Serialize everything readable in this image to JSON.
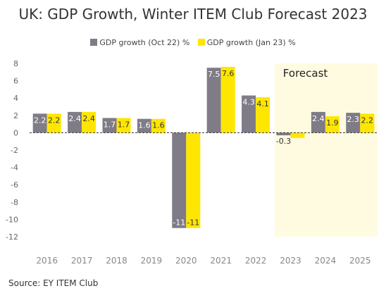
{
  "chart_data": {
    "type": "bar",
    "title": "UK: GDP Growth, Winter ITEM Club Forecast 2023",
    "categories": [
      "2016",
      "2017",
      "2018",
      "2019",
      "2020",
      "2021",
      "2022",
      "2023",
      "2024",
      "2025"
    ],
    "series": [
      {
        "name": "GDP growth (Oct 22) %",
        "color": "#7f7b87",
        "values": [
          2.2,
          2.4,
          1.7,
          1.6,
          -11,
          7.5,
          4.3,
          -0.3,
          2.4,
          2.3
        ],
        "labels": [
          "2.2",
          "2.4",
          "1.7",
          "1.6",
          "-11",
          "7.5",
          "4.3",
          "-0.3",
          "2.4",
          "2.3"
        ]
      },
      {
        "name": "GDP growth (Jan 23) %",
        "color": "#ffe600",
        "values": [
          2.2,
          2.4,
          1.7,
          1.6,
          -11,
          7.6,
          4.1,
          -0.6,
          1.9,
          2.2
        ],
        "labels": [
          "2.2",
          "2.4",
          "1.7",
          "1.6",
          "-11",
          "7.6",
          "4.1",
          "",
          "1.9",
          "2.2"
        ]
      }
    ],
    "ylim": [
      -12,
      8
    ],
    "yticks": [
      8,
      6,
      4,
      2,
      0,
      -2,
      -4,
      -6,
      -8,
      -10,
      -12
    ],
    "xlabel": "",
    "ylabel": "",
    "grid": false,
    "legend": "top-center",
    "forecast": {
      "label": "Forecast",
      "from_category": "2023",
      "to_category": "2025",
      "shade_color": "#fffbe0"
    }
  },
  "source": "Source: EY ITEM Club"
}
